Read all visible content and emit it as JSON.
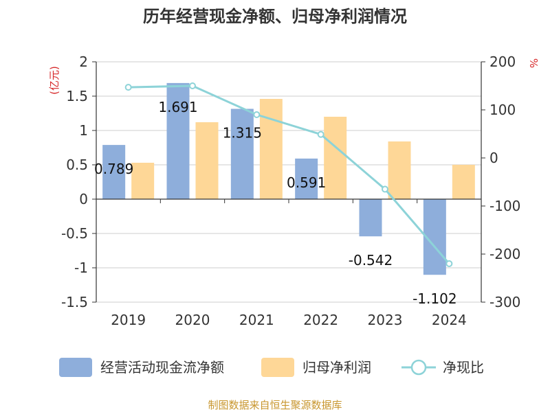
{
  "chart_data": {
    "type": "bar",
    "title": "历年经营现金净额、归母净利润情况",
    "categories": [
      "2019",
      "2020",
      "2021",
      "2022",
      "2023",
      "2024"
    ],
    "left_axis": {
      "unit": "(亿元)",
      "min": -1.5,
      "max": 2,
      "step": 0.5,
      "ticks": [
        "-1.5",
        "-1",
        "-0.5",
        "0",
        "0.5",
        "1",
        "1.5",
        "2"
      ]
    },
    "right_axis": {
      "unit": "%",
      "min": -300,
      "max": 200,
      "step": 100,
      "ticks": [
        "-300",
        "-200",
        "-100",
        "0",
        "100",
        "200"
      ]
    },
    "grid": true,
    "legend_position": "bottom",
    "series": [
      {
        "name": "经营活动现金流净额",
        "kind": "bar",
        "axis": "left",
        "color": "#8eaedb",
        "values": [
          0.789,
          1.691,
          1.315,
          0.591,
          -0.542,
          -1.102
        ],
        "labels": [
          "0.789",
          "1.691",
          "1.315",
          "0.591",
          "-0.542",
          "-1.102"
        ]
      },
      {
        "name": "归母净利润",
        "kind": "bar",
        "axis": "left",
        "color": "#fed797",
        "values": [
          0.53,
          1.12,
          1.46,
          1.2,
          0.84,
          0.5
        ]
      },
      {
        "name": "净现比",
        "kind": "line",
        "axis": "right",
        "color": "#8dd3d8",
        "values": [
          147,
          150,
          90,
          49,
          -65,
          -220
        ]
      }
    ],
    "source": "制图数据来自恒生聚源数据库"
  }
}
